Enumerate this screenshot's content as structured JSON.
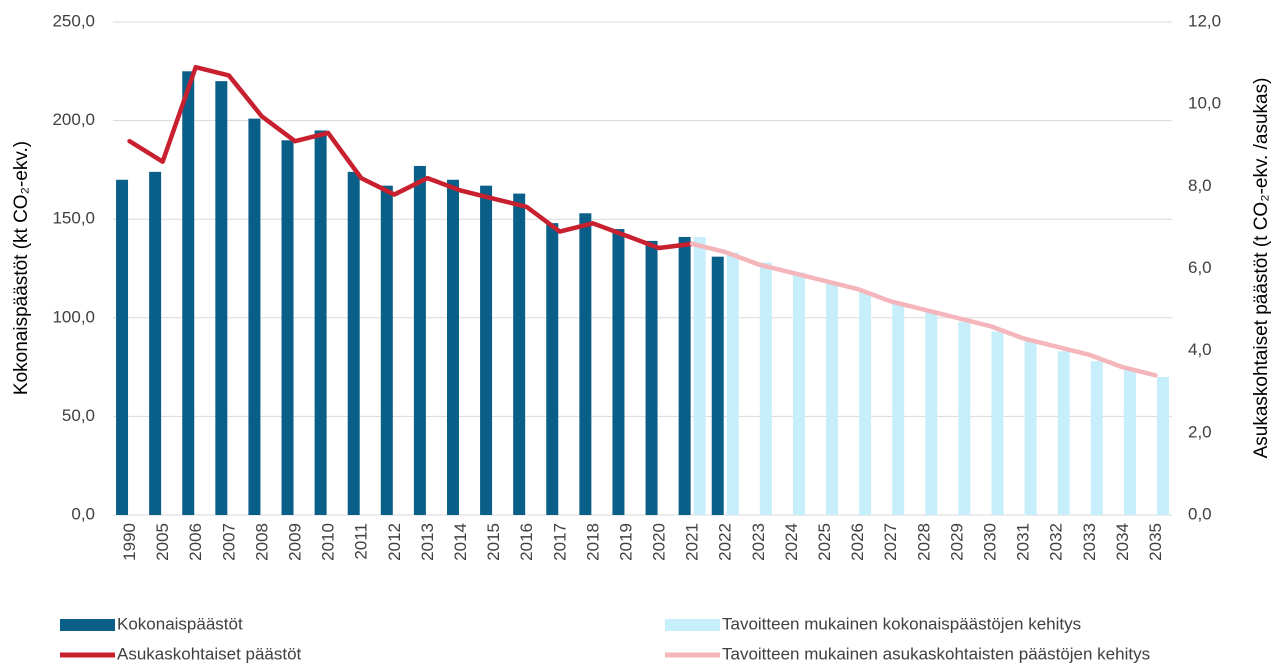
{
  "chart_data": {
    "type": "bar",
    "categories": [
      "1990",
      "2005",
      "2006",
      "2007",
      "2008",
      "2009",
      "2010",
      "2011",
      "2012",
      "2013",
      "2014",
      "2015",
      "2016",
      "2017",
      "2018",
      "2019",
      "2020",
      "2021",
      "2022",
      "2023",
      "2024",
      "2025",
      "2026",
      "2027",
      "2028",
      "2029",
      "2030",
      "2031",
      "2032",
      "2033",
      "2034",
      "2035"
    ],
    "ylabel": "Kokonaispäästöt (kt CO₂-ekv.)",
    "y2label": "Asukaskohtaiset päästöt (t CO₂-ekv. /asukas)",
    "ylim": [
      0,
      250
    ],
    "yticks": [
      {
        "value": 0,
        "label": "0,0"
      },
      {
        "value": 50,
        "label": "50,0"
      },
      {
        "value": 100,
        "label": "100,0"
      },
      {
        "value": 150,
        "label": "150,0"
      },
      {
        "value": 200,
        "label": "200,0"
      },
      {
        "value": 250,
        "label": "250,0"
      }
    ],
    "y2lim": [
      0,
      12
    ],
    "y2ticks": [
      {
        "value": 0,
        "label": "0,0"
      },
      {
        "value": 2,
        "label": "2,0"
      },
      {
        "value": 4,
        "label": "4,0"
      },
      {
        "value": 6,
        "label": "6,0"
      },
      {
        "value": 8,
        "label": "8,0"
      },
      {
        "value": 10,
        "label": "10,0"
      },
      {
        "value": 12,
        "label": "12,0"
      }
    ],
    "grid": true,
    "legend": "bottom",
    "series": [
      {
        "name": "Kokonaispäästöt",
        "type": "bar",
        "color": "#0a5f88",
        "values": [
          170,
          174,
          225,
          220,
          201,
          190,
          195,
          174,
          167,
          177,
          170,
          167,
          163,
          148,
          153,
          145,
          139,
          141,
          131,
          null,
          null,
          null,
          null,
          null,
          null,
          null,
          null,
          null,
          null,
          null,
          null,
          null
        ]
      },
      {
        "name": "Tavoitteen mukainen kokonaispäästöjen kehitys",
        "type": "bar",
        "color": "#c6eefb",
        "values": [
          null,
          null,
          null,
          null,
          null,
          null,
          null,
          null,
          null,
          null,
          null,
          null,
          null,
          null,
          null,
          null,
          null,
          141,
          133,
          128,
          123,
          118,
          113,
          108,
          103,
          98,
          93,
          88,
          83,
          78,
          74,
          70
        ]
      },
      {
        "name": "Asukaskohtaiset päästöt",
        "type": "line",
        "axis": "y2",
        "color": "#c8202f",
        "values": [
          9.1,
          8.6,
          10.9,
          10.7,
          9.7,
          9.1,
          9.3,
          8.2,
          7.8,
          8.2,
          7.9,
          7.7,
          7.5,
          6.9,
          7.1,
          6.8,
          6.5,
          6.6,
          null,
          null,
          null,
          null,
          null,
          null,
          null,
          null,
          null,
          null,
          null,
          null,
          null,
          null
        ]
      },
      {
        "name": "Tavoitteen mukainen asukaskohtaisten päästöjen kehitys",
        "type": "line",
        "axis": "y2",
        "color": "#f4b6bb",
        "values": [
          null,
          null,
          null,
          null,
          null,
          null,
          null,
          null,
          null,
          null,
          null,
          null,
          null,
          null,
          null,
          null,
          null,
          6.6,
          6.4,
          6.1,
          5.9,
          5.7,
          5.5,
          5.2,
          5.0,
          4.8,
          4.6,
          4.3,
          4.1,
          3.9,
          3.6,
          3.4
        ]
      }
    ]
  }
}
